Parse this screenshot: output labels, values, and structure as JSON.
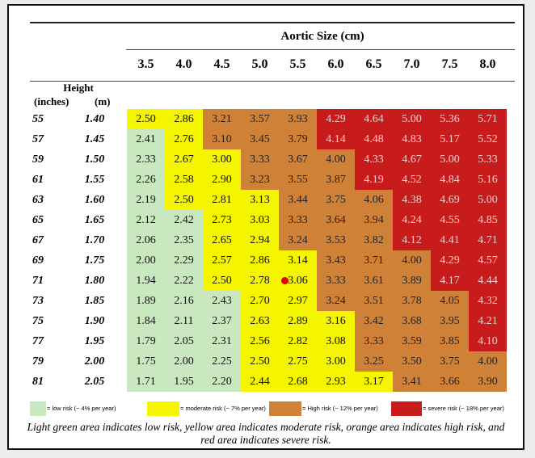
{
  "colors": {
    "low": "#c9e8c0",
    "moderate": "#f5f500",
    "high": "#cf8137",
    "severe": "#c81c1c"
  },
  "aortic_title": "Aortic Size (cm)",
  "sizes": [
    "3.5",
    "4.0",
    "4.5",
    "5.0",
    "5.5",
    "6.0",
    "6.5",
    "7.0",
    "7.5",
    "8.0"
  ],
  "height_label": "Height",
  "inches_label": "(inches)",
  "m_label": "(m)",
  "rows": [
    {
      "inches": "55",
      "m": "1.40",
      "values": [
        "2.50",
        "2.86",
        "3.21",
        "3.57",
        "3.93",
        "4.29",
        "4.64",
        "5.00",
        "5.36",
        "5.71"
      ],
      "risk": [
        "moderate",
        "moderate",
        "high",
        "high",
        "high",
        "severe",
        "severe",
        "severe",
        "severe",
        "severe"
      ]
    },
    {
      "inches": "57",
      "m": "1.45",
      "values": [
        "2.41",
        "2.76",
        "3.10",
        "3.45",
        "3.79",
        "4.14",
        "4.48",
        "4.83",
        "5.17",
        "5.52"
      ],
      "risk": [
        "low",
        "moderate",
        "high",
        "high",
        "high",
        "severe",
        "severe",
        "severe",
        "severe",
        "severe"
      ]
    },
    {
      "inches": "59",
      "m": "1.50",
      "values": [
        "2.33",
        "2.67",
        "3.00",
        "3.33",
        "3.67",
        "4.00",
        "4.33",
        "4.67",
        "5.00",
        "5.33"
      ],
      "risk": [
        "low",
        "moderate",
        "moderate",
        "high",
        "high",
        "high",
        "severe",
        "severe",
        "severe",
        "severe"
      ]
    },
    {
      "inches": "61",
      "m": "1.55",
      "values": [
        "2.26",
        "2.58",
        "2.90",
        "3.23",
        "3.55",
        "3.87",
        "4.19",
        "4.52",
        "4.84",
        "5.16"
      ],
      "risk": [
        "low",
        "moderate",
        "moderate",
        "high",
        "high",
        "high",
        "severe",
        "severe",
        "severe",
        "severe"
      ]
    },
    {
      "inches": "63",
      "m": "1.60",
      "values": [
        "2.19",
        "2.50",
        "2.81",
        "3.13",
        "3.44",
        "3.75",
        "4.06",
        "4.38",
        "4.69",
        "5.00"
      ],
      "risk": [
        "low",
        "moderate",
        "moderate",
        "moderate",
        "high",
        "high",
        "high",
        "severe",
        "severe",
        "severe"
      ]
    },
    {
      "inches": "65",
      "m": "1.65",
      "values": [
        "2.12",
        "2.42",
        "2.73",
        "3.03",
        "3.33",
        "3.64",
        "3.94",
        "4.24",
        "4.55",
        "4.85"
      ],
      "risk": [
        "low",
        "low",
        "moderate",
        "moderate",
        "high",
        "high",
        "high",
        "severe",
        "severe",
        "severe"
      ]
    },
    {
      "inches": "67",
      "m": "1.70",
      "values": [
        "2.06",
        "2.35",
        "2.65",
        "2.94",
        "3.24",
        "3.53",
        "3.82",
        "4.12",
        "4.41",
        "4.71"
      ],
      "risk": [
        "low",
        "low",
        "moderate",
        "moderate",
        "high",
        "high",
        "high",
        "severe",
        "severe",
        "severe"
      ]
    },
    {
      "inches": "69",
      "m": "1.75",
      "values": [
        "2.00",
        "2.29",
        "2.57",
        "2.86",
        "3.14",
        "3.43",
        "3.71",
        "4.00",
        "4.29",
        "4.57"
      ],
      "risk": [
        "low",
        "low",
        "moderate",
        "moderate",
        "moderate",
        "high",
        "high",
        "high",
        "severe",
        "severe"
      ]
    },
    {
      "inches": "71",
      "m": "1.80",
      "values": [
        "1.94",
        "2.22",
        "2.50",
        "2.78",
        "3.06",
        "3.33",
        "3.61",
        "3.89",
        "4.17",
        "4.44"
      ],
      "risk": [
        "low",
        "low",
        "moderate",
        "moderate",
        "moderate",
        "high",
        "high",
        "high",
        "severe",
        "severe"
      ]
    },
    {
      "inches": "73",
      "m": "1.85",
      "values": [
        "1.89",
        "2.16",
        "2.43",
        "2.70",
        "2.97",
        "3.24",
        "3.51",
        "3.78",
        "4.05",
        "4.32"
      ],
      "risk": [
        "low",
        "low",
        "low",
        "moderate",
        "moderate",
        "high",
        "high",
        "high",
        "high",
        "severe"
      ]
    },
    {
      "inches": "75",
      "m": "1.90",
      "values": [
        "1.84",
        "2.11",
        "2.37",
        "2.63",
        "2.89",
        "3.16",
        "3.42",
        "3.68",
        "3.95",
        "4.21"
      ],
      "risk": [
        "low",
        "low",
        "low",
        "moderate",
        "moderate",
        "moderate",
        "high",
        "high",
        "high",
        "severe"
      ]
    },
    {
      "inches": "77",
      "m": "1.95",
      "values": [
        "1.79",
        "2.05",
        "2.31",
        "2.56",
        "2.82",
        "3.08",
        "3.33",
        "3.59",
        "3.85",
        "4.10"
      ],
      "risk": [
        "low",
        "low",
        "low",
        "moderate",
        "moderate",
        "moderate",
        "high",
        "high",
        "high",
        "severe"
      ]
    },
    {
      "inches": "79",
      "m": "2.00",
      "values": [
        "1.75",
        "2.00",
        "2.25",
        "2.50",
        "2.75",
        "3.00",
        "3.25",
        "3.50",
        "3.75",
        "4.00"
      ],
      "risk": [
        "low",
        "low",
        "low",
        "moderate",
        "moderate",
        "moderate",
        "high",
        "high",
        "high",
        "high"
      ]
    },
    {
      "inches": "81",
      "m": "2.05",
      "values": [
        "1.71",
        "1.95",
        "2.20",
        "2.44",
        "2.68",
        "2.93",
        "3.17",
        "3.41",
        "3.66",
        "3.90"
      ],
      "risk": [
        "low",
        "low",
        "low",
        "moderate",
        "moderate",
        "moderate",
        "moderate",
        "high",
        "high",
        "high"
      ]
    }
  ],
  "legend": [
    {
      "risk": "low",
      "label": "= low risk (~ 4% per year)"
    },
    {
      "risk": "moderate",
      "label": "= moderate risk (~ 7% per year)"
    },
    {
      "risk": "high",
      "label": "= High risk (~ 12% per year)"
    },
    {
      "risk": "severe",
      "label": "= severe risk (~ 18% per year)"
    }
  ],
  "caption": "Light green area indicates low risk, yellow area indicates moderate risk, orange area indicates high risk, and red area indicates severe risk."
}
